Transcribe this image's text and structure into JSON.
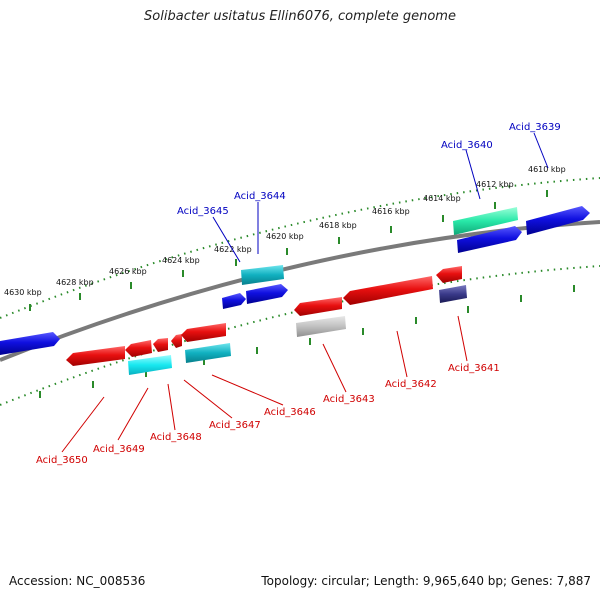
{
  "title": "Solibacter usitatus Ellin6076, complete genome",
  "footer": {
    "accession": "Accession: NC_008536",
    "summary": "Topology: circular; Length: 9,965,640 bp; Genes: 7,887"
  },
  "colors": {
    "backbone": "#808080",
    "plus_strand_ruler": "#2a8a2a",
    "minus_strand_ruler": "#2a8a2a",
    "gene_red": "#e01010",
    "gene_blue": "#1010d8",
    "gene_cyan": "#10c8d8",
    "gene_teal": "#10a8b8",
    "gene_green": "#20e0a0",
    "gene_gray": "#b8b8b8",
    "gene_navy": "#3a3a8a",
    "label_top": "#0000c0",
    "label_bottom": "#d00000"
  },
  "kbp_ticks": [
    "4630 kbp",
    "4628 kbp",
    "4626 kbp",
    "4624 kbp",
    "4622 kbp",
    "4620 kbp",
    "4618 kbp",
    "4616 kbp",
    "4614 kbp",
    "4612 kbp",
    "4610 kbp"
  ],
  "top_labels": [
    "Acid_3645",
    "Acid_3644",
    "Acid_3640",
    "Acid_3639"
  ],
  "bottom_labels": [
    "Acid_3650",
    "Acid_3649",
    "Acid_3648",
    "Acid_3647",
    "Acid_3646",
    "Acid_3643",
    "Acid_3642",
    "Acid_3641"
  ]
}
